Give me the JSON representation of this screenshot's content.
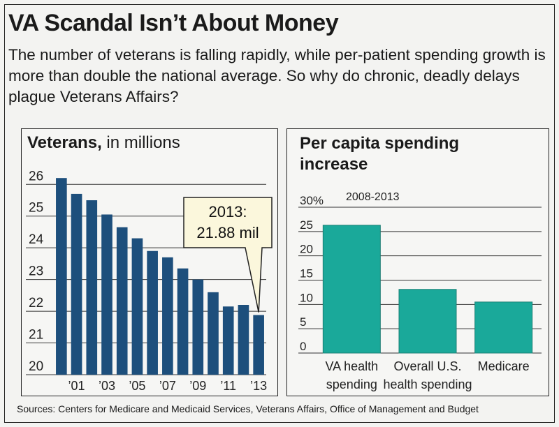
{
  "header": {
    "title": "VA Scandal Isn’t About Money",
    "subtitle": "The number of veterans is falling rapidly, while per-patient spending growth is more than double the national average. So why do chronic, deadly delays plague Veterans Affairs?"
  },
  "source": "Sources: Centers for Medicare and Medicaid Services, Veterans Affairs, Office of Management and Budget",
  "colors": {
    "bar_left": "#1d4f7c",
    "bar_right": "#1aa99a",
    "background": "#f3f3f1"
  },
  "chart_data": [
    {
      "type": "bar",
      "title_bold": "Veterans,",
      "title_rest": " in millions",
      "categories": [
        "2000",
        "2001",
        "2002",
        "2003",
        "2004",
        "2005",
        "2006",
        "2007",
        "2008",
        "2009",
        "2010",
        "2011",
        "2012",
        "2013"
      ],
      "tick_labels": [
        "’01",
        "’03",
        "’05",
        "’07",
        "’09",
        "’11",
        "’13"
      ],
      "tick_label_categories": [
        "2001",
        "2003",
        "2005",
        "2007",
        "2009",
        "2011",
        "2013"
      ],
      "values": [
        26.2,
        25.7,
        25.5,
        25.05,
        24.65,
        24.3,
        23.9,
        23.7,
        23.35,
        23.0,
        22.6,
        22.15,
        22.2,
        21.88
      ],
      "ylim": [
        20,
        26.6
      ],
      "yticks": [
        "20",
        "21",
        "22",
        "23",
        "24",
        "25",
        "26"
      ],
      "callout": {
        "line1": "2013:",
        "line2": "21.88 mil"
      },
      "grid": "horizontal"
    },
    {
      "type": "bar",
      "title_line1": "Per capita spending",
      "title_line2": "increase",
      "period_label": "2008-2013",
      "categories": [
        "VA health spending",
        "Overall U.S. health spending",
        "Medicare"
      ],
      "category_lines": [
        [
          "VA health",
          "spending"
        ],
        [
          "Overall U.S.",
          "health spending"
        ],
        [
          "Medicare"
        ]
      ],
      "values": [
        26.3,
        13.1,
        10.5
      ],
      "ylim": [
        0,
        30
      ],
      "yticks": [
        "0",
        "5",
        "10",
        "15",
        "20",
        "25",
        "30%"
      ],
      "grid": "horizontal"
    }
  ]
}
